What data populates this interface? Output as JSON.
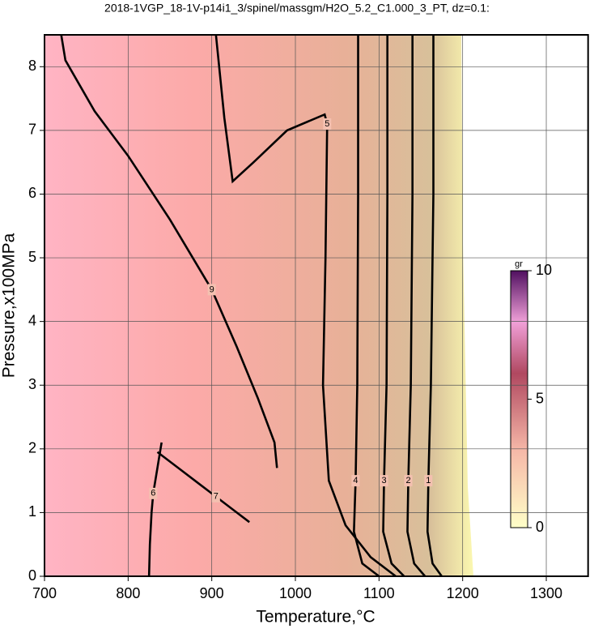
{
  "chart_data": {
    "type": "contour",
    "title": "2018-1VGP_18-1V-p14i1_3/spinel/massgm/H2O_5.2_C1.000_3_PT, dz=0.1:",
    "x_label": "Temperature,°C",
    "y_label": "Pressure,x100MPa",
    "xlim": [
      700,
      1350
    ],
    "xticks": [
      700,
      800,
      900,
      1000,
      1100,
      1200,
      1300
    ],
    "ylim": [
      0,
      8.5
    ],
    "yticks": [
      0,
      1,
      2,
      3,
      4,
      5,
      6,
      7,
      8
    ],
    "grid": true,
    "contours": [
      {
        "name": "9",
        "x": [
          720,
          725,
          760,
          800,
          850,
          900,
          930,
          955,
          975,
          978
        ],
        "y": [
          8.5,
          8.1,
          7.3,
          6.6,
          5.6,
          4.5,
          3.6,
          2.8,
          2.1,
          1.7
        ]
      },
      {
        "name": "5",
        "x": [
          905,
          915,
          925,
          950,
          990,
          1035,
          1038,
          1036,
          1033,
          1040,
          1060,
          1090,
          1120
        ],
        "y": [
          8.5,
          7.2,
          6.2,
          6.5,
          7.0,
          7.25,
          7.1,
          5.0,
          3.0,
          1.5,
          0.8,
          0.3,
          0
        ]
      },
      {
        "name": "4",
        "x": [
          1075,
          1075,
          1074,
          1072,
          1070,
          1080,
          1100
        ],
        "y": [
          8.5,
          6.0,
          3.0,
          1.5,
          0.7,
          0.2,
          0
        ]
      },
      {
        "name": "3",
        "x": [
          1110,
          1110,
          1109,
          1106,
          1105,
          1115,
          1130
        ],
        "y": [
          8.5,
          6.0,
          3.0,
          1.5,
          0.7,
          0.2,
          0
        ]
      },
      {
        "name": "2",
        "x": [
          1140,
          1140,
          1138,
          1135,
          1134,
          1142,
          1155
        ],
        "y": [
          8.5,
          6.0,
          3.0,
          1.5,
          0.7,
          0.2,
          0
        ]
      },
      {
        "name": "1",
        "x": [
          1165,
          1165,
          1162,
          1159,
          1158,
          1164,
          1175
        ],
        "y": [
          8.5,
          6.0,
          3.0,
          1.5,
          0.7,
          0.2,
          0
        ]
      },
      {
        "name": "6",
        "x": [
          825,
          826,
          828,
          830,
          835,
          840
        ],
        "y": [
          0,
          0.5,
          1.0,
          1.3,
          1.7,
          2.1
        ]
      },
      {
        "name": "7",
        "x": [
          835,
          860,
          885,
          905,
          925,
          945
        ],
        "y": [
          1.95,
          1.7,
          1.45,
          1.25,
          1.05,
          0.85
        ]
      }
    ],
    "colorbar": {
      "label": "gr",
      "lim": [
        0,
        10
      ],
      "ticks": [
        0,
        5,
        10
      ]
    }
  }
}
